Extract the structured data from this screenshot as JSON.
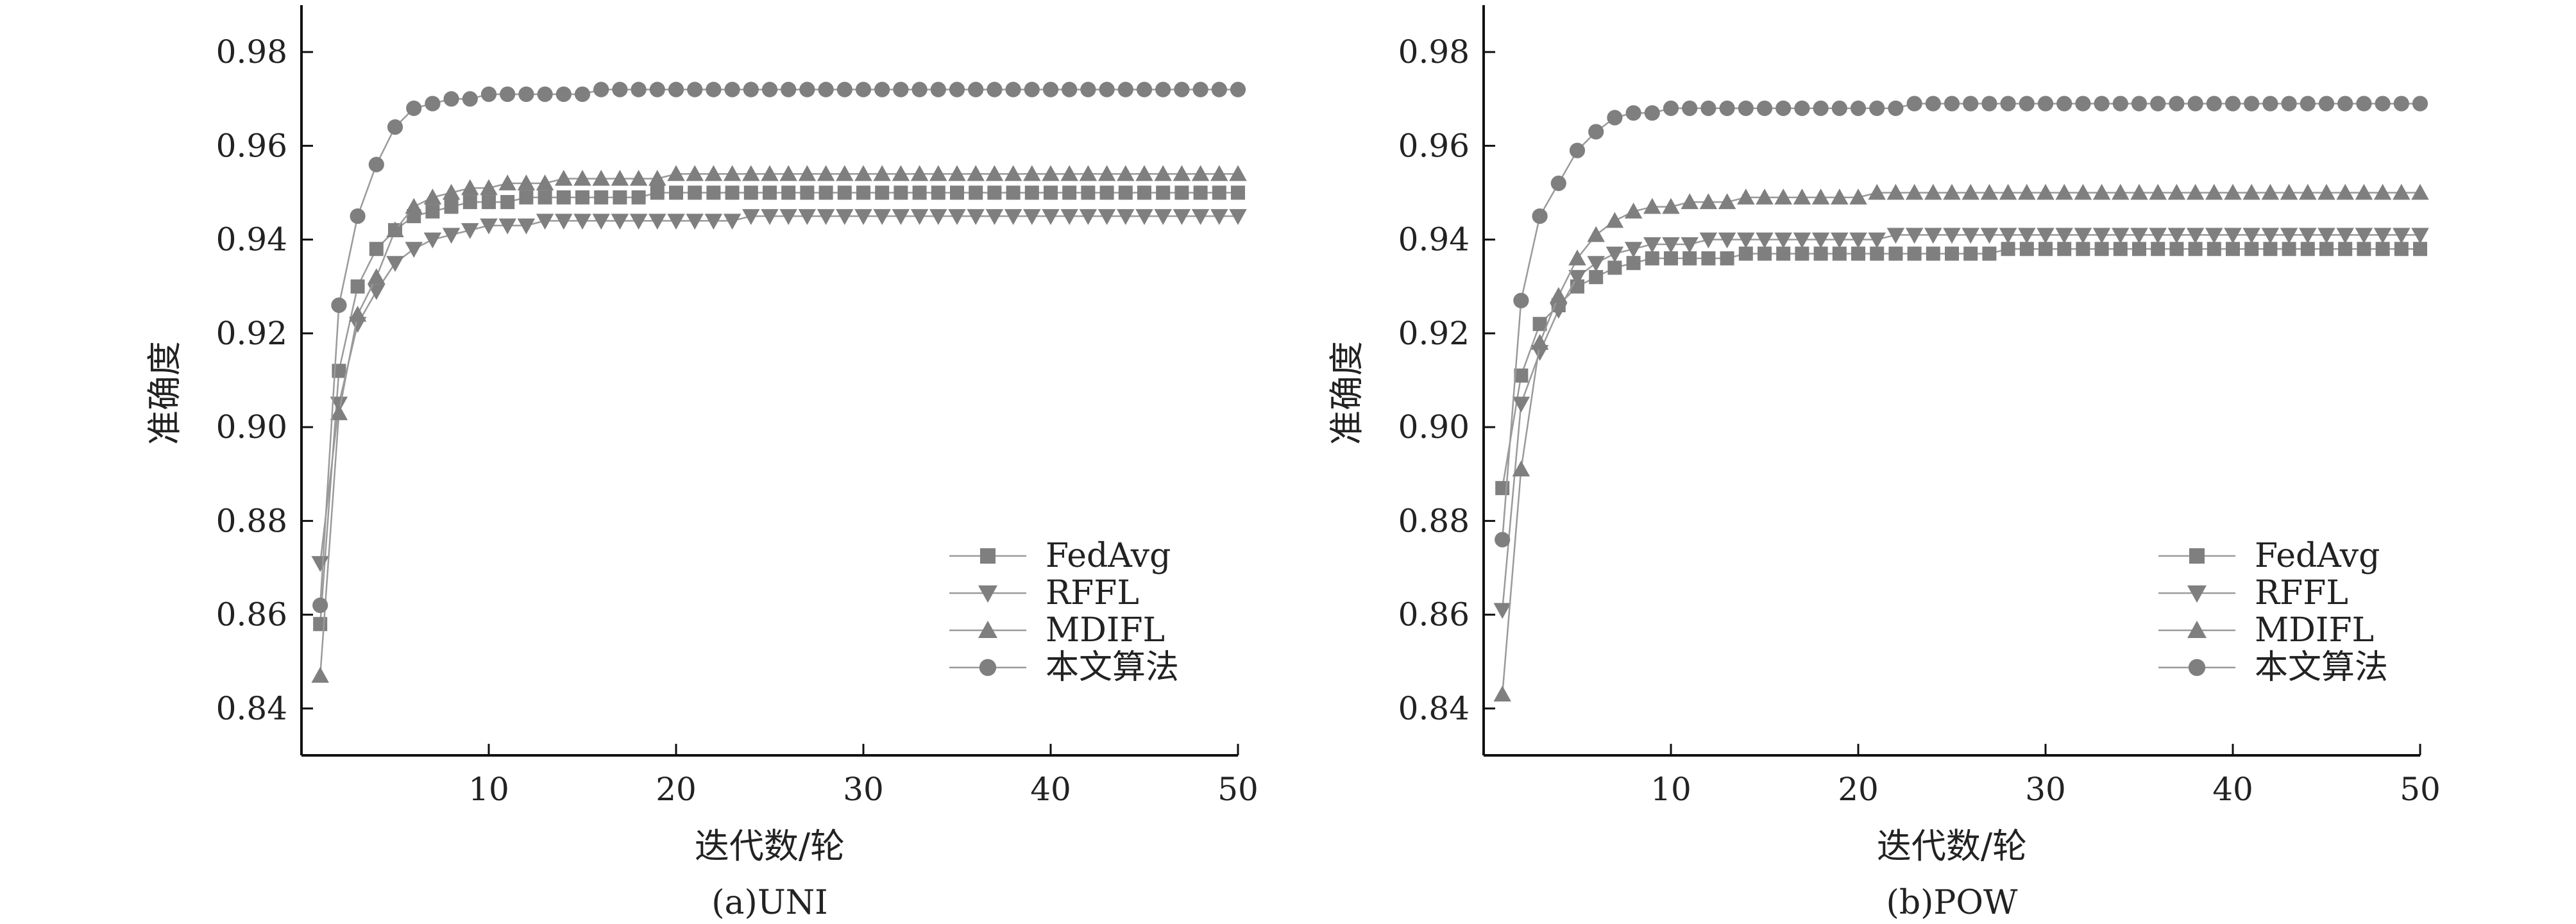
{
  "chart_data": [
    {
      "type": "line",
      "caption": "(a)UNI",
      "xlabel": "迭代数/轮",
      "ylabel": "准确度",
      "xlim": [
        0,
        50
      ],
      "ylim": [
        0.83,
        0.99
      ],
      "xticks": [
        10,
        20,
        30,
        40,
        50
      ],
      "yticks": [
        0.84,
        0.86,
        0.88,
        0.9,
        0.92,
        0.94,
        0.96,
        0.98
      ],
      "legend_position": "lower-right",
      "series": [
        {
          "name": "FedAvg",
          "marker": "square",
          "color": "#7f7f7f",
          "values": [
            0.858,
            0.912,
            0.93,
            0.938,
            0.942,
            0.945,
            0.946,
            0.947,
            0.948,
            0.948,
            0.948,
            0.949,
            0.949,
            0.949,
            0.949,
            0.949,
            0.949,
            0.949,
            0.95,
            0.95,
            0.95,
            0.95,
            0.95,
            0.95,
            0.95,
            0.95,
            0.95,
            0.95,
            0.95,
            0.95,
            0.95,
            0.95,
            0.95,
            0.95,
            0.95,
            0.95,
            0.95,
            0.95,
            0.95,
            0.95,
            0.95,
            0.95,
            0.95,
            0.95,
            0.95,
            0.95,
            0.95,
            0.95,
            0.95,
            0.95
          ]
        },
        {
          "name": "RFFL",
          "marker": "triangle-down",
          "color": "#7f7f7f",
          "values": [
            0.871,
            0.905,
            0.922,
            0.929,
            0.935,
            0.938,
            0.94,
            0.941,
            0.942,
            0.943,
            0.943,
            0.943,
            0.944,
            0.944,
            0.944,
            0.944,
            0.944,
            0.944,
            0.944,
            0.944,
            0.944,
            0.944,
            0.944,
            0.945,
            0.945,
            0.945,
            0.945,
            0.945,
            0.945,
            0.945,
            0.945,
            0.945,
            0.945,
            0.945,
            0.945,
            0.945,
            0.945,
            0.945,
            0.945,
            0.945,
            0.945,
            0.945,
            0.945,
            0.945,
            0.945,
            0.945,
            0.945,
            0.945,
            0.945,
            0.945
          ]
        },
        {
          "name": "MDIFL",
          "marker": "triangle-up",
          "color": "#7f7f7f",
          "values": [
            0.847,
            0.903,
            0.924,
            0.932,
            0.942,
            0.947,
            0.949,
            0.95,
            0.951,
            0.951,
            0.952,
            0.952,
            0.952,
            0.953,
            0.953,
            0.953,
            0.953,
            0.953,
            0.953,
            0.954,
            0.954,
            0.954,
            0.954,
            0.954,
            0.954,
            0.954,
            0.954,
            0.954,
            0.954,
            0.954,
            0.954,
            0.954,
            0.954,
            0.954,
            0.954,
            0.954,
            0.954,
            0.954,
            0.954,
            0.954,
            0.954,
            0.954,
            0.954,
            0.954,
            0.954,
            0.954,
            0.954,
            0.954,
            0.954,
            0.954
          ]
        },
        {
          "name": "本文算法",
          "marker": "circle",
          "color": "#7f7f7f",
          "values": [
            0.862,
            0.926,
            0.945,
            0.956,
            0.964,
            0.968,
            0.969,
            0.97,
            0.97,
            0.971,
            0.971,
            0.971,
            0.971,
            0.971,
            0.971,
            0.972,
            0.972,
            0.972,
            0.972,
            0.972,
            0.972,
            0.972,
            0.972,
            0.972,
            0.972,
            0.972,
            0.972,
            0.972,
            0.972,
            0.972,
            0.972,
            0.972,
            0.972,
            0.972,
            0.972,
            0.972,
            0.972,
            0.972,
            0.972,
            0.972,
            0.972,
            0.972,
            0.972,
            0.972,
            0.972,
            0.972,
            0.972,
            0.972,
            0.972,
            0.972
          ]
        }
      ]
    },
    {
      "type": "line",
      "caption": "(b)POW",
      "xlabel": "迭代数/轮",
      "ylabel": "准确度",
      "xlim": [
        0,
        50
      ],
      "ylim": [
        0.83,
        0.99
      ],
      "xticks": [
        10,
        20,
        30,
        40,
        50
      ],
      "yticks": [
        0.84,
        0.86,
        0.88,
        0.9,
        0.92,
        0.94,
        0.96,
        0.98
      ],
      "legend_position": "lower-right",
      "series": [
        {
          "name": "FedAvg",
          "marker": "square",
          "color": "#7f7f7f",
          "values": [
            0.887,
            0.911,
            0.922,
            0.926,
            0.93,
            0.932,
            0.934,
            0.935,
            0.936,
            0.936,
            0.936,
            0.936,
            0.936,
            0.937,
            0.937,
            0.937,
            0.937,
            0.937,
            0.937,
            0.937,
            0.937,
            0.937,
            0.937,
            0.937,
            0.937,
            0.937,
            0.937,
            0.938,
            0.938,
            0.938,
            0.938,
            0.938,
            0.938,
            0.938,
            0.938,
            0.938,
            0.938,
            0.938,
            0.938,
            0.938,
            0.938,
            0.938,
            0.938,
            0.938,
            0.938,
            0.938,
            0.938,
            0.938,
            0.938,
            0.938
          ]
        },
        {
          "name": "RFFL",
          "marker": "triangle-down",
          "color": "#7f7f7f",
          "values": [
            0.861,
            0.905,
            0.916,
            0.925,
            0.932,
            0.935,
            0.937,
            0.938,
            0.939,
            0.939,
            0.939,
            0.94,
            0.94,
            0.94,
            0.94,
            0.94,
            0.94,
            0.94,
            0.94,
            0.94,
            0.94,
            0.941,
            0.941,
            0.941,
            0.941,
            0.941,
            0.941,
            0.941,
            0.941,
            0.941,
            0.941,
            0.941,
            0.941,
            0.941,
            0.941,
            0.941,
            0.941,
            0.941,
            0.941,
            0.941,
            0.941,
            0.941,
            0.941,
            0.941,
            0.941,
            0.941,
            0.941,
            0.941,
            0.941,
            0.941
          ]
        },
        {
          "name": "MDIFL",
          "marker": "triangle-up",
          "color": "#7f7f7f",
          "values": [
            0.843,
            0.891,
            0.918,
            0.928,
            0.936,
            0.941,
            0.944,
            0.946,
            0.947,
            0.947,
            0.948,
            0.948,
            0.948,
            0.949,
            0.949,
            0.949,
            0.949,
            0.949,
            0.949,
            0.949,
            0.95,
            0.95,
            0.95,
            0.95,
            0.95,
            0.95,
            0.95,
            0.95,
            0.95,
            0.95,
            0.95,
            0.95,
            0.95,
            0.95,
            0.95,
            0.95,
            0.95,
            0.95,
            0.95,
            0.95,
            0.95,
            0.95,
            0.95,
            0.95,
            0.95,
            0.95,
            0.95,
            0.95,
            0.95,
            0.95
          ]
        },
        {
          "name": "本文算法",
          "marker": "circle",
          "color": "#7f7f7f",
          "values": [
            0.876,
            0.927,
            0.945,
            0.952,
            0.959,
            0.963,
            0.966,
            0.967,
            0.967,
            0.968,
            0.968,
            0.968,
            0.968,
            0.968,
            0.968,
            0.968,
            0.968,
            0.968,
            0.968,
            0.968,
            0.968,
            0.968,
            0.969,
            0.969,
            0.969,
            0.969,
            0.969,
            0.969,
            0.969,
            0.969,
            0.969,
            0.969,
            0.969,
            0.969,
            0.969,
            0.969,
            0.969,
            0.969,
            0.969,
            0.969,
            0.969,
            0.969,
            0.969,
            0.969,
            0.969,
            0.969,
            0.969,
            0.969,
            0.969,
            0.969
          ]
        }
      ]
    }
  ]
}
